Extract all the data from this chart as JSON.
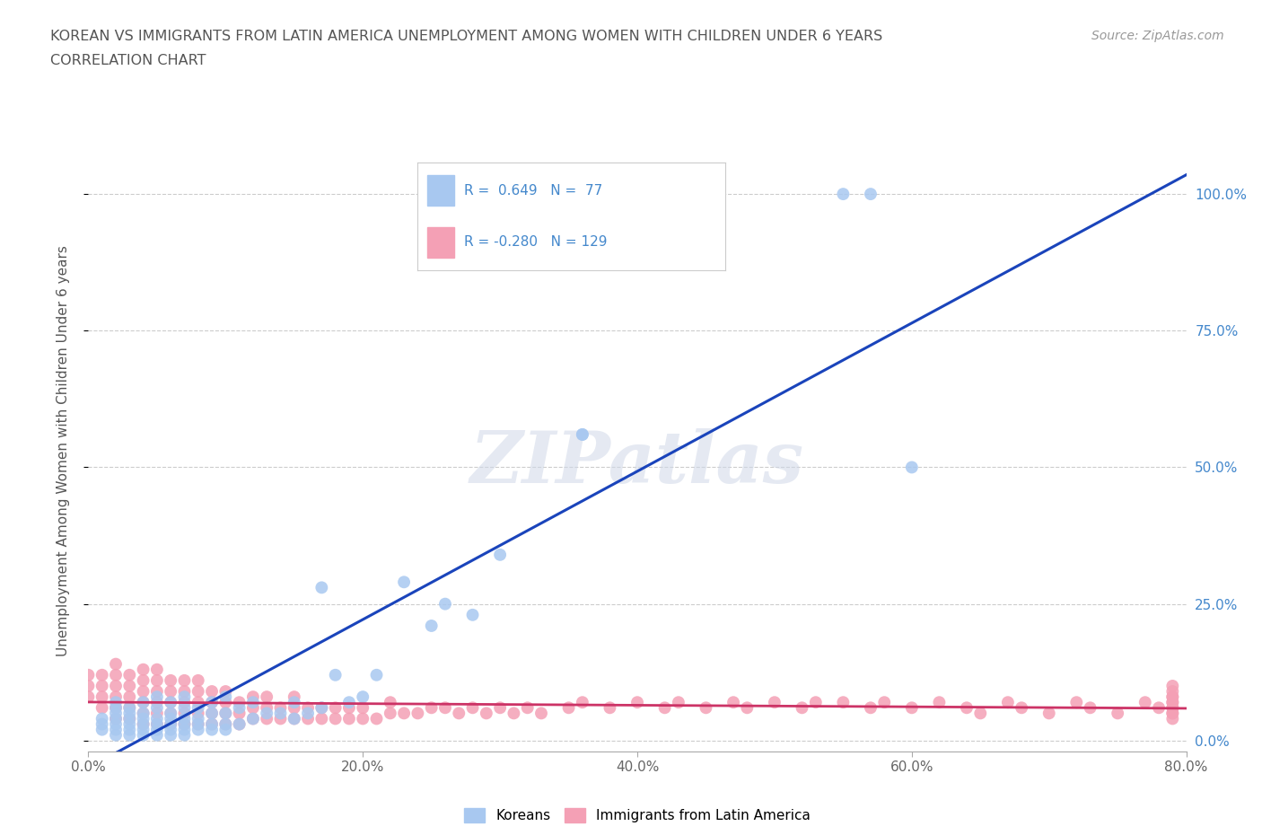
{
  "title_line1": "KOREAN VS IMMIGRANTS FROM LATIN AMERICA UNEMPLOYMENT AMONG WOMEN WITH CHILDREN UNDER 6 YEARS",
  "title_line2": "CORRELATION CHART",
  "source": "Source: ZipAtlas.com",
  "ylabel": "Unemployment Among Women with Children Under 6 years",
  "xlim": [
    0,
    0.8
  ],
  "ylim": [
    -0.02,
    1.08
  ],
  "xticks": [
    0.0,
    0.2,
    0.4,
    0.6,
    0.8
  ],
  "xticklabels": [
    "0.0%",
    "20.0%",
    "40.0%",
    "60.0%",
    "80.0%"
  ],
  "yticks": [
    0.0,
    0.25,
    0.5,
    0.75,
    1.0
  ],
  "yticklabels": [
    "0.0%",
    "25.0%",
    "50.0%",
    "75.0%",
    "100.0%"
  ],
  "grid_color": "#cccccc",
  "background_color": "#ffffff",
  "title_color": "#555555",
  "axis_color": "#4488cc",
  "watermark_text": "ZIPatlas",
  "blue_color": "#a8c8f0",
  "pink_color": "#f4a0b5",
  "blue_line_color": "#1a44bb",
  "pink_line_color": "#cc3366",
  "korean_x": [
    0.01,
    0.01,
    0.01,
    0.02,
    0.02,
    0.02,
    0.02,
    0.02,
    0.02,
    0.02,
    0.03,
    0.03,
    0.03,
    0.03,
    0.03,
    0.03,
    0.04,
    0.04,
    0.04,
    0.04,
    0.04,
    0.04,
    0.05,
    0.05,
    0.05,
    0.05,
    0.05,
    0.05,
    0.06,
    0.06,
    0.06,
    0.06,
    0.06,
    0.06,
    0.07,
    0.07,
    0.07,
    0.07,
    0.07,
    0.07,
    0.08,
    0.08,
    0.08,
    0.08,
    0.09,
    0.09,
    0.09,
    0.09,
    0.1,
    0.1,
    0.1,
    0.1,
    0.11,
    0.11,
    0.12,
    0.12,
    0.13,
    0.14,
    0.15,
    0.15,
    0.16,
    0.17,
    0.17,
    0.18,
    0.19,
    0.2,
    0.21,
    0.23,
    0.25,
    0.26,
    0.28,
    0.3,
    0.36,
    0.36,
    0.55,
    0.57,
    0.6
  ],
  "korean_y": [
    0.02,
    0.03,
    0.04,
    0.01,
    0.02,
    0.03,
    0.04,
    0.05,
    0.06,
    0.07,
    0.01,
    0.02,
    0.03,
    0.04,
    0.05,
    0.06,
    0.01,
    0.02,
    0.03,
    0.04,
    0.05,
    0.07,
    0.01,
    0.02,
    0.03,
    0.04,
    0.06,
    0.08,
    0.01,
    0.02,
    0.03,
    0.04,
    0.05,
    0.07,
    0.01,
    0.02,
    0.03,
    0.04,
    0.06,
    0.08,
    0.02,
    0.03,
    0.04,
    0.06,
    0.02,
    0.03,
    0.05,
    0.07,
    0.02,
    0.03,
    0.05,
    0.08,
    0.03,
    0.06,
    0.04,
    0.07,
    0.05,
    0.05,
    0.04,
    0.07,
    0.05,
    0.06,
    0.28,
    0.12,
    0.07,
    0.08,
    0.12,
    0.29,
    0.21,
    0.25,
    0.23,
    0.34,
    0.56,
    0.56,
    1.0,
    1.0,
    0.5
  ],
  "latin_x": [
    0.0,
    0.0,
    0.0,
    0.01,
    0.01,
    0.01,
    0.01,
    0.02,
    0.02,
    0.02,
    0.02,
    0.02,
    0.02,
    0.03,
    0.03,
    0.03,
    0.03,
    0.03,
    0.04,
    0.04,
    0.04,
    0.04,
    0.04,
    0.04,
    0.05,
    0.05,
    0.05,
    0.05,
    0.05,
    0.05,
    0.06,
    0.06,
    0.06,
    0.06,
    0.06,
    0.07,
    0.07,
    0.07,
    0.07,
    0.07,
    0.08,
    0.08,
    0.08,
    0.08,
    0.08,
    0.09,
    0.09,
    0.09,
    0.09,
    0.1,
    0.1,
    0.1,
    0.1,
    0.11,
    0.11,
    0.11,
    0.12,
    0.12,
    0.12,
    0.13,
    0.13,
    0.13,
    0.14,
    0.14,
    0.15,
    0.15,
    0.15,
    0.16,
    0.16,
    0.17,
    0.17,
    0.18,
    0.18,
    0.19,
    0.19,
    0.2,
    0.2,
    0.21,
    0.22,
    0.22,
    0.23,
    0.24,
    0.25,
    0.26,
    0.27,
    0.28,
    0.29,
    0.3,
    0.31,
    0.32,
    0.33,
    0.35,
    0.36,
    0.38,
    0.4,
    0.42,
    0.43,
    0.45,
    0.47,
    0.48,
    0.5,
    0.52,
    0.53,
    0.55,
    0.57,
    0.58,
    0.6,
    0.62,
    0.64,
    0.65,
    0.67,
    0.68,
    0.7,
    0.72,
    0.73,
    0.75,
    0.77,
    0.78,
    0.79,
    0.79,
    0.79,
    0.79,
    0.79,
    0.79,
    0.79,
    0.79,
    0.79,
    0.79,
    0.79
  ],
  "latin_y": [
    0.08,
    0.1,
    0.12,
    0.06,
    0.08,
    0.1,
    0.12,
    0.04,
    0.06,
    0.08,
    0.1,
    0.12,
    0.14,
    0.04,
    0.06,
    0.08,
    0.1,
    0.12,
    0.03,
    0.05,
    0.07,
    0.09,
    0.11,
    0.13,
    0.03,
    0.05,
    0.07,
    0.09,
    0.11,
    0.13,
    0.03,
    0.05,
    0.07,
    0.09,
    0.11,
    0.03,
    0.05,
    0.07,
    0.09,
    0.11,
    0.03,
    0.05,
    0.07,
    0.09,
    0.11,
    0.03,
    0.05,
    0.07,
    0.09,
    0.03,
    0.05,
    0.07,
    0.09,
    0.03,
    0.05,
    0.07,
    0.04,
    0.06,
    0.08,
    0.04,
    0.06,
    0.08,
    0.04,
    0.06,
    0.04,
    0.06,
    0.08,
    0.04,
    0.06,
    0.04,
    0.06,
    0.04,
    0.06,
    0.04,
    0.06,
    0.04,
    0.06,
    0.04,
    0.05,
    0.07,
    0.05,
    0.05,
    0.06,
    0.06,
    0.05,
    0.06,
    0.05,
    0.06,
    0.05,
    0.06,
    0.05,
    0.06,
    0.07,
    0.06,
    0.07,
    0.06,
    0.07,
    0.06,
    0.07,
    0.06,
    0.07,
    0.06,
    0.07,
    0.07,
    0.06,
    0.07,
    0.06,
    0.07,
    0.06,
    0.05,
    0.07,
    0.06,
    0.05,
    0.07,
    0.06,
    0.05,
    0.07,
    0.06,
    0.04,
    0.05,
    0.06,
    0.07,
    0.08,
    0.09,
    0.1,
    0.05,
    0.06,
    0.07,
    0.08
  ]
}
